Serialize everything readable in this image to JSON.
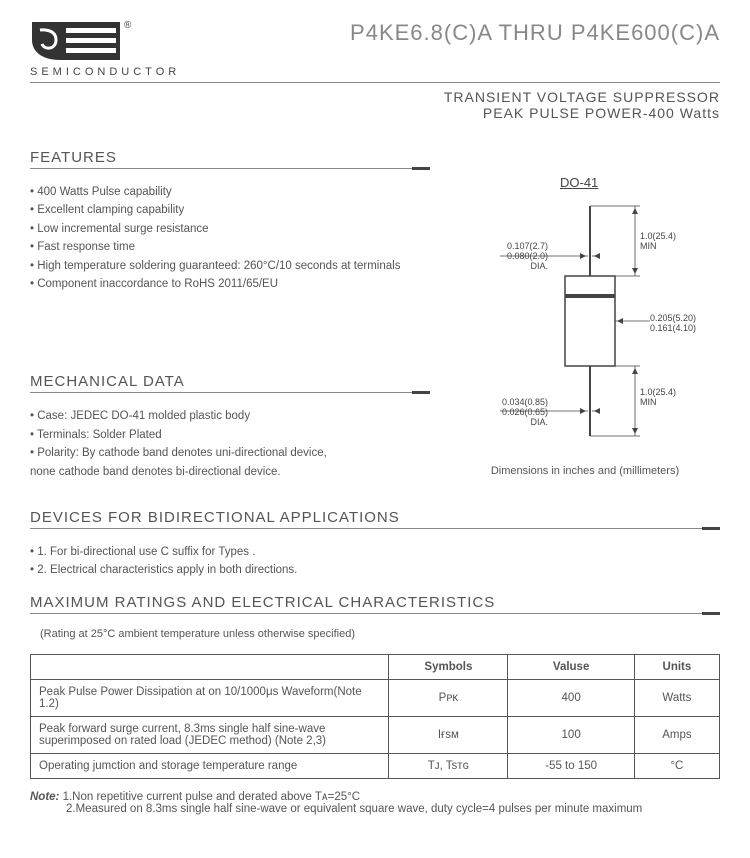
{
  "header": {
    "semiconductor_label": "SEMICONDUCTOR",
    "reg_mark": "®",
    "main_title": "P4KE6.8(C)A THRU P4KE600(C)A",
    "sub_title_1": "TRANSIENT VOLTAGE SUPPRESSOR",
    "sub_title_2": "PEAK PULSE POWER-400 Watts"
  },
  "features": {
    "title": "FEATURES",
    "items": [
      "400 Watts Pulse capability",
      "Excellent clamping capability",
      "Low incremental surge resistance",
      "Fast response time",
      "High temperature soldering guaranteed: 260°C/10 seconds at terminals",
      "Component inaccordance to RoHS 2011/65/EU"
    ]
  },
  "package": {
    "label": "DO-41",
    "dim_top_lead": "1.0(25.4)\nMIN",
    "dim_lead_dia_top": "0.107(2.7)\n0.080(2.0)\nDIA.",
    "dim_body_w": "0.205(5.20)\n0.161(4.10)",
    "dim_bottom_lead": "1.0(25.4)\nMIN",
    "dim_lead_dia_bot": "0.034(0.85)\n0.026(0.65)\nDIA.",
    "caption": "Dimensions in inches and (millimeters)"
  },
  "mechanical": {
    "title": "MECHANICAL DATA",
    "items": [
      "Case: JEDEC DO-41  molded plastic body",
      "Terminals: Solder Plated",
      "Polarity: By cathode band denotes uni-directional device,\n   none cathode band denotes bi-directional device."
    ]
  },
  "bidir": {
    "title": "DEVICES FOR BIDIRECTIONAL APPLICATIONS",
    "items": [
      "1.  For bi-directional use C suffix for Types .",
      "2.  Electrical characteristics apply in both directions."
    ]
  },
  "ratings": {
    "title": "MAXIMUM RATINGS AND ELECTRICAL CHARACTERISTICS",
    "note": "(Rating at 25°C ambient temperature unless otherwise specified)",
    "headers": {
      "symbols": "Symbols",
      "values": "Valuse",
      "units": "Units"
    },
    "rows": [
      {
        "desc": "Peak Pulse Power Dissipation at on 10/1000μs Waveform(Note 1.2)",
        "symbol": "Pᴘᴋ",
        "value": "400",
        "unit": "Watts"
      },
      {
        "desc": "Peak forward surge current, 8.3ms single half sine-wave superimposed on rated load (JEDEC method) (Note 2,3)",
        "symbol": "Iғsᴍ",
        "value": "100",
        "unit": "Amps"
      },
      {
        "desc": "Operating jumction and storage temperature range",
        "symbol": "Tᴊ, Tsᴛɢ",
        "value": "-55 to 150",
        "unit": "°C"
      }
    ]
  },
  "footnotes": {
    "label": "Note:",
    "lines": [
      "1.Non repetitive current pulse and derated above Tᴀ=25°C",
      "2.Measured on 8.3ms single half sine-wave or equivalent square wave, duty cycle=4 pulses per minute maximum"
    ]
  }
}
